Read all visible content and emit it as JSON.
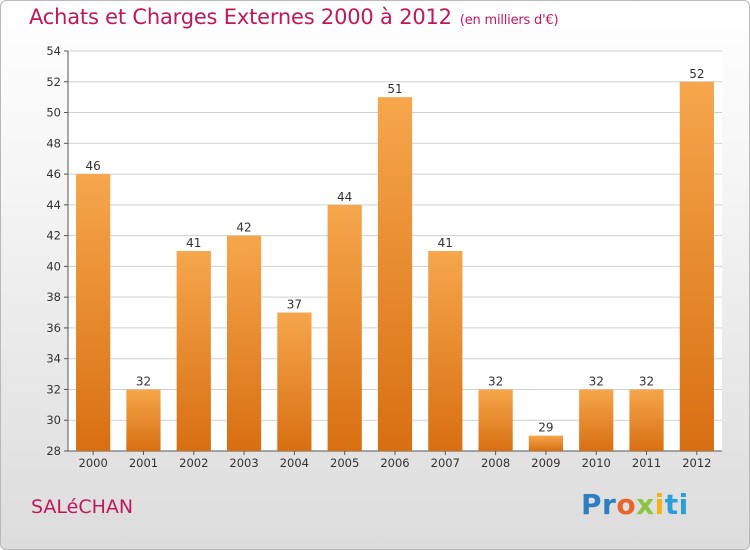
{
  "header": {
    "title": "Achats et Charges Externes 2000 à 2012",
    "subtitle": "(en milliers d'€)"
  },
  "footer": {
    "commune": "SALéCHAN",
    "logo_parts": [
      "Pr",
      "o",
      "x",
      "i",
      "ti"
    ]
  },
  "colors": {
    "bar_top": "#f6a64c",
    "bar_bottom": "#d86f12",
    "text_accent": "#c2185b",
    "grid": "#d0d0d0"
  },
  "chart_data": {
    "type": "bar",
    "title": "Achats et Charges Externes 2000 à 2012",
    "subtitle": "(en milliers d'€)",
    "categories": [
      "2000",
      "2001",
      "2002",
      "2003",
      "2004",
      "2005",
      "2006",
      "2007",
      "2008",
      "2009",
      "2010",
      "2011",
      "2012"
    ],
    "values": [
      46,
      32,
      41,
      42,
      37,
      44,
      51,
      41,
      32,
      29,
      32,
      32,
      52
    ],
    "xlabel": "",
    "ylabel": "",
    "ylim": [
      28,
      54
    ],
    "yticks": [
      28,
      30,
      32,
      34,
      36,
      38,
      40,
      42,
      44,
      46,
      48,
      50,
      52,
      54
    ],
    "grid": true,
    "legend": "none"
  }
}
